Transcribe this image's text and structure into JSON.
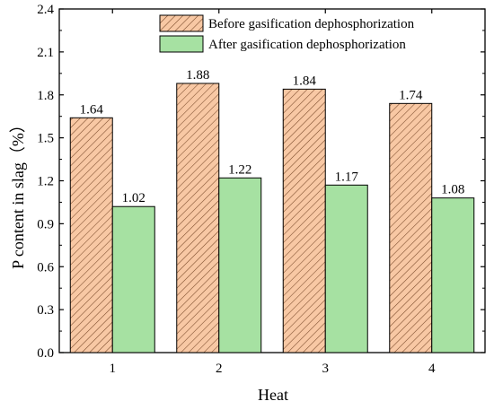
{
  "chart_data": {
    "type": "bar",
    "categories": [
      "1",
      "2",
      "3",
      "4"
    ],
    "series": [
      {
        "name": "Before gasification dephosphorization",
        "values": [
          1.64,
          1.88,
          1.84,
          1.74
        ],
        "labels": [
          "1.64",
          "1.88",
          "1.84",
          "1.74"
        ],
        "fill": "#f8c8a4",
        "hatch": "diagonal"
      },
      {
        "name": "After gasification dephosphorization",
        "values": [
          1.02,
          1.22,
          1.17,
          1.08
        ],
        "labels": [
          "1.02",
          "1.22",
          "1.17",
          "1.08"
        ],
        "fill": "#a6e1a2",
        "hatch": "none"
      }
    ],
    "xlabel": "Heat",
    "ylabel": "P content in slag（%）",
    "ylim": [
      0,
      2.4
    ],
    "yticks": [
      "0.0",
      "0.3",
      "0.6",
      "0.9",
      "1.2",
      "1.5",
      "1.8",
      "2.1",
      "2.4"
    ],
    "grid": false,
    "legend": "top-right"
  }
}
